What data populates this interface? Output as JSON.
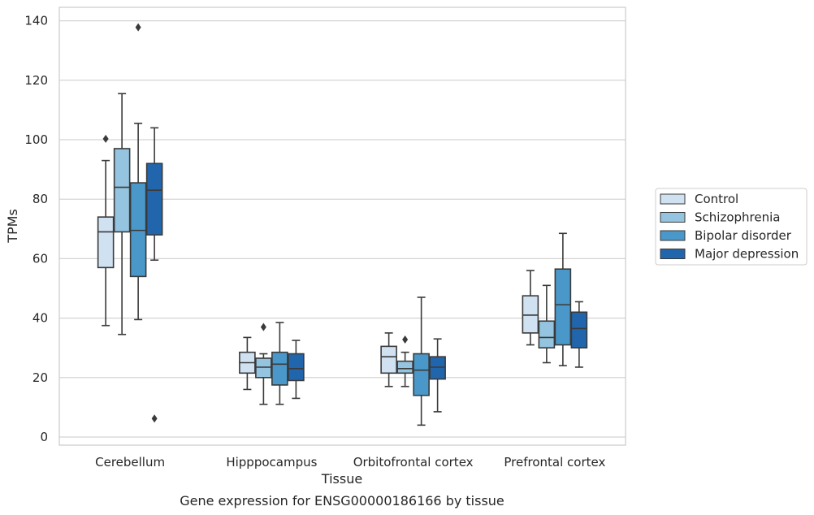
{
  "chart_data": {
    "type": "box",
    "title": "",
    "caption": "Gene expression for ENSG00000186166 by tissue",
    "xlabel": "Tissue",
    "ylabel": "TPMs",
    "ylim": [
      -2.5,
      145
    ],
    "yticks": [
      0,
      20,
      40,
      60,
      80,
      100,
      120,
      140
    ],
    "grid": "horizontal",
    "legend_position": "right",
    "categories": [
      "Cerebellum",
      "Hipppocampus",
      "Orbitofrontal cortex",
      "Prefrontal cortex"
    ],
    "series": [
      {
        "name": "Control",
        "color": "#d0e1f2",
        "boxes": [
          {
            "whislo": 37.5,
            "q1": 57,
            "med": 69,
            "q3": 74,
            "whishi": 93,
            "fliers": [
              100.3
            ]
          },
          {
            "whislo": 16,
            "q1": 21.5,
            "med": 25,
            "q3": 28.5,
            "whishi": 33.5,
            "fliers": []
          },
          {
            "whislo": 17,
            "q1": 21.5,
            "med": 27,
            "q3": 30.5,
            "whishi": 35,
            "fliers": []
          },
          {
            "whislo": 31,
            "q1": 35,
            "med": 41,
            "q3": 47.5,
            "whishi": 56,
            "fliers": []
          }
        ]
      },
      {
        "name": "Schizophrenia",
        "color": "#94c4df",
        "boxes": [
          {
            "whislo": 34.5,
            "q1": 69,
            "med": 84,
            "q3": 97,
            "whishi": 115.5,
            "fliers": []
          },
          {
            "whislo": 11,
            "q1": 20,
            "med": 23.5,
            "q3": 26.5,
            "whishi": 28,
            "fliers": [
              37
            ]
          },
          {
            "whislo": 17,
            "q1": 21.5,
            "med": 23,
            "q3": 25.5,
            "whishi": 28.5,
            "fliers": [
              32.8
            ]
          },
          {
            "whislo": 25,
            "q1": 30,
            "med": 33.5,
            "q3": 39,
            "whishi": 51,
            "fliers": []
          }
        ]
      },
      {
        "name": "Bipolar disorder",
        "color": "#4a98c9",
        "boxes": [
          {
            "whislo": 39.5,
            "q1": 54,
            "med": 69.5,
            "q3": 85.5,
            "whishi": 105.5,
            "fliers": [
              137.8
            ]
          },
          {
            "whislo": 11,
            "q1": 17.5,
            "med": 24.5,
            "q3": 28.5,
            "whishi": 38.5,
            "fliers": []
          },
          {
            "whislo": 4,
            "q1": 14,
            "med": 22.5,
            "q3": 28,
            "whishi": 47,
            "fliers": []
          },
          {
            "whislo": 24,
            "q1": 31,
            "med": 44.5,
            "q3": 56.5,
            "whishi": 68.5,
            "fliers": []
          }
        ]
      },
      {
        "name": "Major depression",
        "color": "#2166ac",
        "boxes": [
          {
            "whislo": 59.5,
            "q1": 68,
            "med": 83,
            "q3": 92,
            "whishi": 104,
            "fliers": [
              6.2
            ]
          },
          {
            "whislo": 13,
            "q1": 19,
            "med": 23,
            "q3": 28,
            "whishi": 32.5,
            "fliers": []
          },
          {
            "whislo": 8.5,
            "q1": 19.5,
            "med": 23.5,
            "q3": 27,
            "whishi": 33,
            "fliers": []
          },
          {
            "whislo": 23.5,
            "q1": 30,
            "med": 36.5,
            "q3": 42,
            "whishi": 45.5,
            "fliers": []
          }
        ]
      }
    ]
  }
}
